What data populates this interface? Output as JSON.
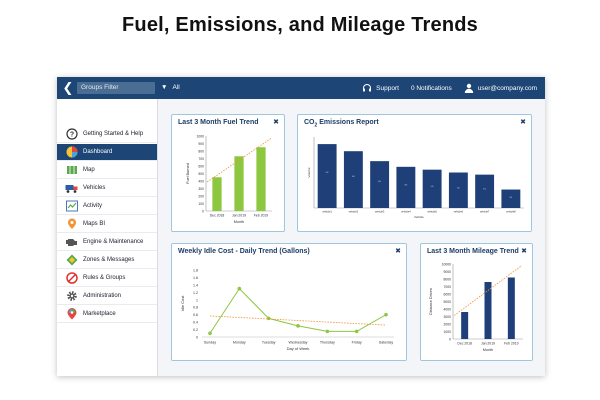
{
  "page_title": "Fuel, Emissions, and Mileage Trends",
  "topbar": {
    "groups_filter_label": "Groups Filter",
    "all_label": "All",
    "support_label": "Support",
    "notifications_label": "0 Notifications",
    "user_label": "user@company.com",
    "bg_color": "#1d4677"
  },
  "sidebar": {
    "items": [
      {
        "label": "Getting Started & Help",
        "icon": "help-icon",
        "active": false
      },
      {
        "label": "Dashboard",
        "icon": "dashboard-icon",
        "active": true
      },
      {
        "label": "Map",
        "icon": "map-icon",
        "active": false
      },
      {
        "label": "Vehicles",
        "icon": "vehicle-icon",
        "active": false
      },
      {
        "label": "Activity",
        "icon": "activity-icon",
        "active": false
      },
      {
        "label": "Maps BI",
        "icon": "maps-bi-icon",
        "active": false
      },
      {
        "label": "Engine & Maintenance",
        "icon": "engine-icon",
        "active": false
      },
      {
        "label": "Zones & Messages",
        "icon": "zones-icon",
        "active": false
      },
      {
        "label": "Rules & Groups",
        "icon": "rules-icon",
        "active": false
      },
      {
        "label": "Administration",
        "icon": "gear-icon",
        "active": false
      },
      {
        "label": "Marketplace",
        "icon": "marketplace-icon",
        "active": false
      }
    ]
  },
  "cards": {
    "fuel_title": "Last 3 Month Fuel Trend",
    "co2_title_prefix": "CO",
    "co2_title_sub": "2",
    "co2_title_suffix": " Emissions Report",
    "idle_title": "Weekly Idle Cost - Daily Trend (Gallons)",
    "mileage_title": "Last 3 Month Mileage Trend",
    "close_glyph": "✖"
  },
  "chart_data": [
    {
      "type": "bar",
      "id": "fuel",
      "categories": [
        "Dec 2018",
        "Jan 2019",
        "Feb 2019"
      ],
      "values": [
        450,
        730,
        850
      ],
      "ylim": [
        0,
        1000
      ],
      "yticks": [
        0,
        100,
        200,
        300,
        400,
        500,
        600,
        700,
        800,
        900,
        1000
      ],
      "xlabel": "Month",
      "ylabel": "Fuel Burned",
      "bar_color": "#8dc63f",
      "trendline": true,
      "trend_color": "#f29436"
    },
    {
      "type": "bar",
      "id": "co2",
      "categories": [
        "vehicle1",
        "vehicle2",
        "vehicle3",
        "vehicle4",
        "vehicle5",
        "vehicle6",
        "vehicle7",
        "vehicle8"
      ],
      "values": [
        900,
        800,
        660,
        580,
        540,
        500,
        470,
        260
      ],
      "ylim": [
        0,
        1000
      ],
      "xlabel": "Vehicle",
      "ylabel": "Volume",
      "bar_color": "#1f3f78"
    },
    {
      "type": "line",
      "id": "idle",
      "categories": [
        "Sunday",
        "Monday",
        "Tuesday",
        "Wednesday",
        "Thursday",
        "Friday",
        "Saturday"
      ],
      "values": [
        0.1,
        1.3,
        0.5,
        0.3,
        0.15,
        0.15,
        0.6
      ],
      "ylim": [
        0,
        1.8
      ],
      "yticks": [
        0,
        0.2,
        0.4,
        0.6,
        0.8,
        1,
        1.2,
        1.4,
        1.6,
        1.8
      ],
      "ytick_labels": [
        "0",
        "0.2",
        "0.4",
        "0.6",
        "0.8",
        "1",
        "1.2",
        "1.4",
        "1.6",
        "1.8"
      ],
      "xlabel": "Day of Week",
      "ylabel": "Idle Cost",
      "line_color": "#8dc63f",
      "trendline": true,
      "trend_color": "#f29436"
    },
    {
      "type": "bar",
      "id": "mileage",
      "categories": [
        "Dec 2018",
        "Jan 2019",
        "Feb 2019"
      ],
      "values": [
        3600,
        7600,
        8200
      ],
      "ylim": [
        0,
        10000
      ],
      "yticks": [
        0,
        1000,
        2000,
        3000,
        4000,
        5000,
        6000,
        7000,
        8000,
        9000,
        10000
      ],
      "xlabel": "Month",
      "ylabel": "Distance Driven",
      "bar_color": "#1f3f78",
      "trendline": true,
      "trend_color": "#f29436"
    }
  ]
}
